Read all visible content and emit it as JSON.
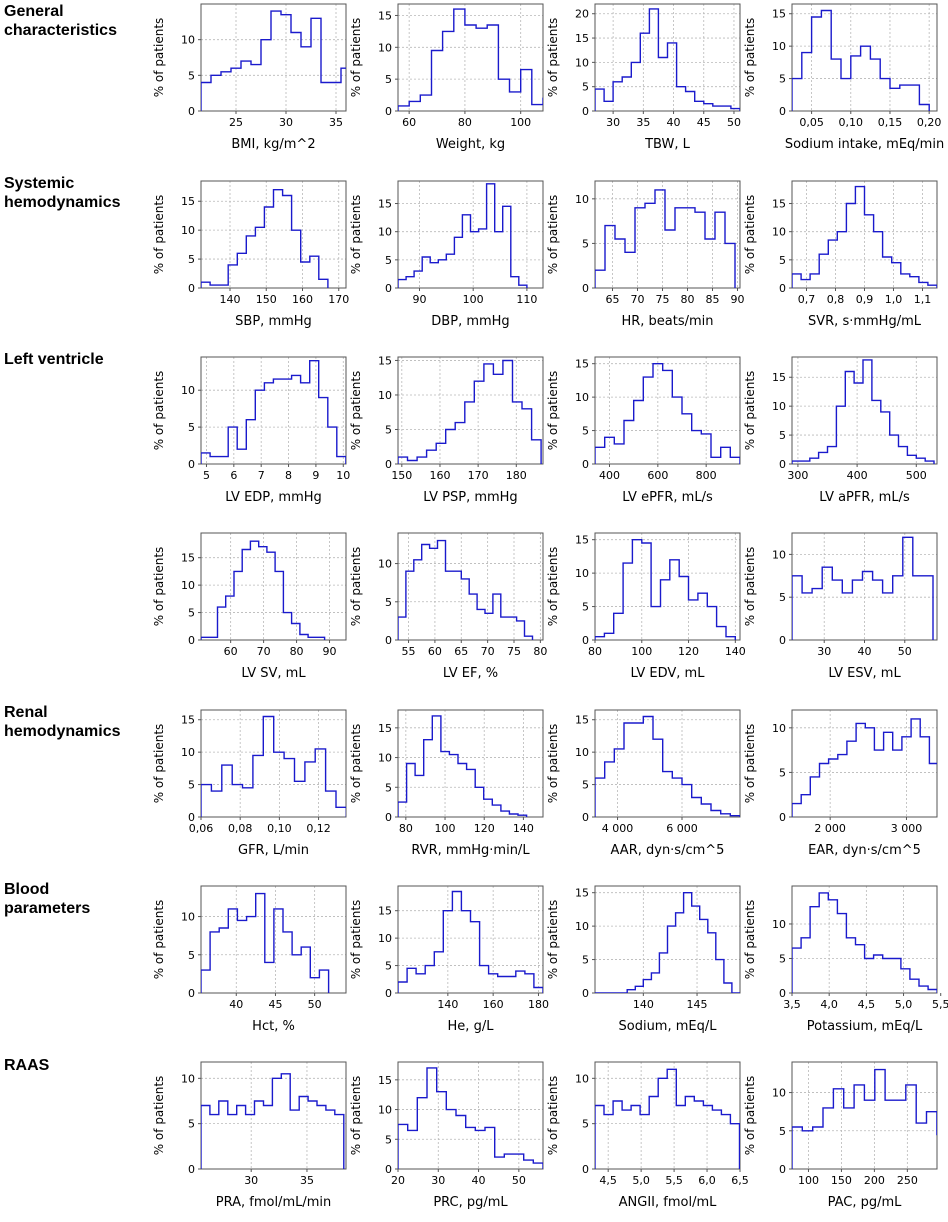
{
  "sections": [
    {
      "label": "General\ncharacteristics",
      "row": 0
    },
    {
      "label": "Systemic\nhemodynamics",
      "row": 1
    },
    {
      "label": "Left ventricle",
      "row": 2
    },
    {
      "label": "Renal\nhemodynamics",
      "row": 4
    },
    {
      "label": "Blood\nparameters",
      "row": 5
    },
    {
      "label": "RAAS",
      "row": 6
    }
  ],
  "y_axis_label": "% of patients",
  "chart_data": [
    {
      "type": "histogram",
      "row": 0,
      "col": 0,
      "xlabel": "BMI, kg/m^2",
      "xlim": [
        21.5,
        36
      ],
      "ylim": [
        0,
        15
      ],
      "xticks": [
        "25",
        "30",
        "35"
      ],
      "xtick_values": [
        25,
        30,
        35
      ],
      "yticks": [
        0,
        5,
        10
      ],
      "bin_start": 21.5,
      "bin_width": 1,
      "values": [
        4,
        5,
        5.5,
        6,
        7,
        6.5,
        10,
        14,
        13.5,
        11,
        9,
        13,
        4,
        4,
        6,
        1.5
      ]
    },
    {
      "type": "histogram",
      "row": 0,
      "col": 1,
      "xlabel": "Weight, kg",
      "xlim": [
        56,
        108
      ],
      "ylim": [
        0,
        16.8
      ],
      "xticks": [
        "60",
        "80",
        "100"
      ],
      "xtick_values": [
        60,
        80,
        100
      ],
      "yticks": [
        0,
        5,
        10,
        15
      ],
      "bin_start": 56,
      "bin_width": 4,
      "values": [
        0.8,
        1.5,
        2.5,
        9.5,
        12.5,
        16,
        13.5,
        13,
        13.5,
        5,
        3,
        6.5,
        1,
        2
      ]
    },
    {
      "type": "histogram",
      "row": 0,
      "col": 2,
      "xlabel": "TBW, L",
      "xlim": [
        27,
        51
      ],
      "ylim": [
        0,
        22
      ],
      "xticks": [
        "30",
        "35",
        "40",
        "45",
        "50"
      ],
      "xtick_values": [
        30,
        35,
        40,
        45,
        50
      ],
      "yticks": [
        0,
        5,
        10,
        15,
        20
      ],
      "bin_start": 27,
      "bin_width": 1.5,
      "values": [
        4.5,
        2,
        6,
        7,
        10,
        16,
        21,
        11,
        14,
        5,
        4,
        2,
        1.5,
        1,
        1,
        0.5
      ]
    },
    {
      "type": "histogram",
      "row": 0,
      "col": 3,
      "xlabel": "Sodium intake, mEq/min",
      "xlim": [
        0.025,
        0.21
      ],
      "ylim": [
        0,
        16.5
      ],
      "xticks": [
        "0,05",
        "0,10",
        "0,15",
        "0,20"
      ],
      "xtick_values": [
        0.05,
        0.1,
        0.15,
        0.2
      ],
      "yticks": [
        0,
        5,
        10,
        15
      ],
      "bin_start": 0.025,
      "bin_width": 0.0125,
      "values": [
        5,
        9,
        14.5,
        15.5,
        8,
        5,
        8.5,
        10,
        8,
        5,
        3.5,
        4,
        4,
        1
      ]
    },
    {
      "type": "histogram",
      "row": 1,
      "col": 0,
      "xlabel": "SBP, mmHg",
      "xlim": [
        132,
        172
      ],
      "ylim": [
        0,
        18.5
      ],
      "xticks": [
        "140",
        "150",
        "160",
        "170"
      ],
      "xtick_values": [
        140,
        150,
        160,
        170
      ],
      "yticks": [
        0,
        5,
        10,
        15
      ],
      "bin_start": 132,
      "bin_width": 2.5,
      "values": [
        1,
        0.5,
        0.5,
        4,
        6,
        9,
        10.5,
        14,
        17,
        16,
        10,
        4.5,
        5.5,
        1.5
      ]
    },
    {
      "type": "histogram",
      "row": 1,
      "col": 1,
      "xlabel": "DBP, mmHg",
      "xlim": [
        86,
        113
      ],
      "ylim": [
        0,
        19
      ],
      "xticks": [
        "90",
        "100",
        "110"
      ],
      "xtick_values": [
        90,
        100,
        110
      ],
      "yticks": [
        0,
        5,
        10,
        15
      ],
      "bin_start": 86,
      "bin_width": 1.5,
      "values": [
        1.5,
        2,
        3,
        5.5,
        4.5,
        5,
        6,
        9,
        13,
        10,
        10.5,
        18.5,
        10,
        14.5,
        2,
        0.5
      ]
    },
    {
      "type": "histogram",
      "row": 1,
      "col": 2,
      "xlabel": "HR, beats/min",
      "xlim": [
        61.5,
        90.5
      ],
      "ylim": [
        0,
        12
      ],
      "xticks": [
        "65",
        "70",
        "75",
        "80",
        "85",
        "90"
      ],
      "xtick_values": [
        65,
        70,
        75,
        80,
        85,
        90
      ],
      "yticks": [
        0,
        5,
        10
      ],
      "bin_start": 61.5,
      "bin_width": 2,
      "values": [
        2,
        7,
        5.5,
        4,
        9,
        9.5,
        11,
        6.5,
        9,
        9,
        8.5,
        5.5,
        8.5,
        5
      ]
    },
    {
      "type": "histogram",
      "row": 1,
      "col": 3,
      "xlabel": "SVR, s·mmHg/mL",
      "xlim": [
        0.65,
        1.15
      ],
      "ylim": [
        0,
        19
      ],
      "xticks": [
        "0,7",
        "0,8",
        "0,9",
        "1,0",
        "1,1"
      ],
      "xtick_values": [
        0.7,
        0.8,
        0.9,
        1.0,
        1.1
      ],
      "yticks": [
        0,
        5,
        10,
        15
      ],
      "bin_start": 0.65,
      "bin_width": 0.03125,
      "values": [
        2.5,
        1.5,
        2.5,
        6,
        8.5,
        10,
        15,
        18,
        13,
        10,
        5.5,
        4.5,
        2.5,
        2,
        1,
        0.5
      ]
    },
    {
      "type": "histogram",
      "row": 2,
      "col": 0,
      "xlabel": "LV EDP, mmHg",
      "xlim": [
        4.8,
        10.1
      ],
      "ylim": [
        0,
        14.5
      ],
      "xticks": [
        "5",
        "6",
        "7",
        "8",
        "9",
        "10"
      ],
      "xtick_values": [
        5,
        6,
        7,
        8,
        9,
        10
      ],
      "yticks": [
        0,
        5,
        10
      ],
      "bin_start": 4.8,
      "bin_width": 0.331,
      "values": [
        1.5,
        1,
        1,
        5,
        2,
        6,
        10,
        11,
        11.5,
        11.5,
        12,
        11,
        14,
        9,
        5,
        1
      ]
    },
    {
      "type": "histogram",
      "row": 2,
      "col": 1,
      "xlabel": "LV PSP, mmHg",
      "xlim": [
        149,
        187
      ],
      "ylim": [
        0,
        15.5
      ],
      "xticks": [
        "150",
        "160",
        "170",
        "180"
      ],
      "xtick_values": [
        150,
        160,
        170,
        180
      ],
      "yticks": [
        0,
        5,
        10,
        15
      ],
      "bin_start": 149,
      "bin_width": 2.5,
      "values": [
        1,
        0.5,
        1,
        2,
        3,
        5,
        6,
        9,
        12,
        14.5,
        13,
        15,
        9,
        8,
        3.5
      ]
    },
    {
      "type": "histogram",
      "row": 2,
      "col": 2,
      "xlabel": "LV ePFR, mL/s",
      "xlim": [
        340,
        940
      ],
      "ylim": [
        0,
        16
      ],
      "xticks": [
        "400",
        "600",
        "800"
      ],
      "xtick_values": [
        400,
        600,
        800
      ],
      "yticks": [
        0,
        5,
        10,
        15
      ],
      "bin_start": 340,
      "bin_width": 40,
      "values": [
        2.5,
        4,
        3,
        6.5,
        9.5,
        13,
        15,
        14,
        10,
        7.5,
        5,
        4.5,
        1,
        2.5,
        1
      ]
    },
    {
      "type": "histogram",
      "row": 2,
      "col": 3,
      "xlabel": "LV aPFR, mL/s",
      "xlim": [
        290,
        535
      ],
      "ylim": [
        0,
        18.5
      ],
      "xticks": [
        "300",
        "400",
        "500"
      ],
      "xtick_values": [
        300,
        400,
        500
      ],
      "yticks": [
        0,
        5,
        10,
        15
      ],
      "bin_start": 290,
      "bin_width": 15,
      "values": [
        0.5,
        0.5,
        1,
        2,
        3,
        10,
        16,
        14,
        18,
        11,
        9,
        5,
        3,
        1.5,
        1,
        0.5
      ]
    },
    {
      "type": "histogram",
      "row": 3,
      "col": 0,
      "xlabel": "LV SV, mL",
      "xlim": [
        51,
        95
      ],
      "ylim": [
        0,
        19.5
      ],
      "xticks": [
        "60",
        "70",
        "80",
        "90"
      ],
      "xtick_values": [
        60,
        70,
        80,
        90
      ],
      "yticks": [
        0,
        5,
        10,
        15
      ],
      "bin_start": 51,
      "bin_width": 2.5,
      "values": [
        0.5,
        0.5,
        6,
        8,
        12.5,
        16.5,
        18,
        17,
        16,
        12.5,
        5,
        3,
        1,
        0.5,
        0.5
      ]
    },
    {
      "type": "histogram",
      "row": 3,
      "col": 1,
      "xlabel": "LV EF, %",
      "xlim": [
        53,
        80.5
      ],
      "ylim": [
        0,
        14
      ],
      "xticks": [
        "55",
        "60",
        "65",
        "70",
        "75",
        "80"
      ],
      "xtick_values": [
        55,
        60,
        65,
        70,
        75,
        80
      ],
      "yticks": [
        0,
        5,
        10
      ],
      "bin_start": 53,
      "bin_width": 1.5,
      "values": [
        3,
        9,
        10.5,
        12.5,
        12,
        13,
        9,
        9,
        8,
        6,
        4,
        3.5,
        6,
        3,
        3,
        2.5,
        0.5
      ]
    },
    {
      "type": "histogram",
      "row": 3,
      "col": 2,
      "xlabel": "LV EDV, mL",
      "xlim": [
        80,
        142
      ],
      "ylim": [
        0,
        16
      ],
      "xticks": [
        "80",
        "100",
        "120",
        "140"
      ],
      "xtick_values": [
        80,
        100,
        120,
        140
      ],
      "yticks": [
        0,
        5,
        10,
        15
      ],
      "bin_start": 80,
      "bin_width": 4,
      "values": [
        0.5,
        1,
        4,
        11.5,
        15,
        14.5,
        5,
        9,
        12,
        9.5,
        6,
        7,
        5,
        2,
        0.5
      ]
    },
    {
      "type": "histogram",
      "row": 3,
      "col": 3,
      "xlabel": "LV ESV, mL",
      "xlim": [
        22,
        58
      ],
      "ylim": [
        0,
        12.5
      ],
      "xticks": [
        "30",
        "40",
        "50"
      ],
      "xtick_values": [
        30,
        40,
        50
      ],
      "yticks": [
        0,
        5,
        10
      ],
      "bin_start": 22,
      "bin_width": 2.5,
      "values": [
        7.5,
        5.5,
        6,
        8.5,
        7,
        5.5,
        7,
        8,
        7,
        5.5,
        7.5,
        12,
        7.5,
        7.5
      ]
    },
    {
      "type": "histogram",
      "row": 4,
      "col": 0,
      "xlabel": "GFR, L/min",
      "xlim": [
        0.06,
        0.134
      ],
      "ylim": [
        0,
        16.5
      ],
      "xticks": [
        "0,06",
        "0,08",
        "0,10",
        "0,12"
      ],
      "xtick_values": [
        0.06,
        0.08,
        0.1,
        0.12
      ],
      "yticks": [
        0,
        5,
        10,
        15
      ],
      "bin_start": 0.06,
      "bin_width": 0.0053,
      "values": [
        5,
        4,
        8,
        5,
        4.5,
        9.5,
        15.5,
        10,
        9,
        5.5,
        8.5,
        10.5,
        4,
        1.5
      ]
    },
    {
      "type": "histogram",
      "row": 4,
      "col": 1,
      "xlabel": "RVR, mmHg·min/L",
      "xlim": [
        76,
        150
      ],
      "ylim": [
        0,
        18
      ],
      "xticks": [
        "80",
        "100",
        "120",
        "140"
      ],
      "xtick_values": [
        80,
        100,
        120,
        140
      ],
      "yticks": [
        0,
        5,
        10,
        15
      ],
      "bin_start": 76,
      "bin_width": 4.375,
      "values": [
        2.5,
        9,
        7,
        13,
        17,
        11,
        10.5,
        9,
        8,
        5,
        3,
        2,
        1,
        0.5,
        0.3
      ]
    },
    {
      "type": "histogram",
      "row": 4,
      "col": 2,
      "xlabel": "AAR, dyn·s/cm^5",
      "xlim": [
        3300,
        7800
      ],
      "ylim": [
        0,
        16.5
      ],
      "xticks": [
        "4 000",
        "6 000"
      ],
      "xtick_values": [
        4000,
        6000
      ],
      "yticks": [
        0,
        5,
        10,
        15
      ],
      "bin_start": 3300,
      "bin_width": 300,
      "values": [
        6,
        8.5,
        10.5,
        14.5,
        14.5,
        15.5,
        12,
        7,
        6,
        5,
        3,
        2,
        1,
        0.5,
        0.2
      ]
    },
    {
      "type": "histogram",
      "row": 4,
      "col": 3,
      "xlabel": "EAR, dyn·s/cm^5",
      "xlim": [
        1500,
        3400
      ],
      "ylim": [
        0,
        12
      ],
      "xticks": [
        "2 000",
        "3 000"
      ],
      "xtick_values": [
        2000,
        3000
      ],
      "yticks": [
        0,
        5,
        10
      ],
      "bin_start": 1500,
      "bin_width": 120,
      "values": [
        1.5,
        2.5,
        4.5,
        6,
        6.5,
        7,
        8.5,
        10.5,
        10,
        7.5,
        9.5,
        7.5,
        9,
        11,
        9,
        6
      ]
    },
    {
      "type": "histogram",
      "row": 5,
      "col": 0,
      "xlabel": "Hct, %",
      "xlim": [
        35.5,
        54
      ],
      "ylim": [
        0,
        14
      ],
      "xticks": [
        "40",
        "45",
        "50"
      ],
      "xtick_values": [
        40,
        45,
        50
      ],
      "yticks": [
        0,
        5,
        10
      ],
      "bin_start": 35.5,
      "bin_width": 1.1625,
      "values": [
        3,
        8,
        8.5,
        11,
        9.5,
        10,
        13,
        4,
        11,
        8,
        5,
        6,
        2,
        3
      ]
    },
    {
      "type": "histogram",
      "row": 5,
      "col": 1,
      "xlabel": "He, g/L",
      "xlim": [
        118,
        182
      ],
      "ylim": [
        0,
        19.5
      ],
      "xticks": [
        "140",
        "160",
        "180"
      ],
      "xtick_values": [
        140,
        160,
        180
      ],
      "yticks": [
        0,
        5,
        10,
        15
      ],
      "bin_start": 118,
      "bin_width": 4,
      "values": [
        2,
        4.5,
        3.5,
        5,
        7.5,
        15,
        18.5,
        15,
        13,
        5,
        3.5,
        3,
        3,
        4,
        3.5,
        1
      ]
    },
    {
      "type": "histogram",
      "row": 5,
      "col": 2,
      "xlabel": "Sodium, mEq/L",
      "xlim": [
        135.5,
        149
      ],
      "ylim": [
        0,
        16
      ],
      "xticks": [
        "140",
        "145"
      ],
      "xtick_values": [
        140,
        145
      ],
      "yticks": [
        0,
        5,
        10,
        15
      ],
      "bin_start": 135.5,
      "bin_width": 0.75,
      "values": [
        0,
        0,
        0,
        0,
        0.5,
        1,
        2,
        3,
        6,
        10,
        12,
        15,
        13,
        11,
        9,
        5,
        1.5,
        0
      ]
    },
    {
      "type": "histogram",
      "row": 5,
      "col": 3,
      "xlabel": "Potassium, mEq/L",
      "xlim": [
        3.5,
        5.45
      ],
      "ylim": [
        0,
        15.5
      ],
      "xticks": [
        "3,5",
        "4,0",
        "4,5",
        "5,0",
        "5,5"
      ],
      "xtick_values": [
        3.5,
        4.0,
        4.5,
        5.0,
        5.5
      ],
      "yticks": [
        0,
        5,
        10
      ],
      "bin_start": 3.5,
      "bin_width": 0.122,
      "values": [
        6.5,
        8,
        12.5,
        14.5,
        13.5,
        11.5,
        8,
        7,
        5,
        5.5,
        5,
        5,
        3.5,
        2,
        1,
        0.5
      ]
    },
    {
      "type": "histogram",
      "row": 6,
      "col": 0,
      "xlabel": "PRA, fmol/mL/min",
      "xlim": [
        25.5,
        38.5
      ],
      "ylim": [
        0,
        11.8
      ],
      "xticks": [
        "30",
        "35"
      ],
      "xtick_values": [
        30,
        35
      ],
      "yticks": [
        0,
        5,
        10
      ],
      "bin_start": 25.5,
      "bin_width": 0.8,
      "values": [
        7,
        6,
        7.5,
        6,
        7,
        6,
        7.5,
        7,
        10,
        10.5,
        6.5,
        8,
        7.5,
        7,
        6.5,
        6
      ]
    },
    {
      "type": "histogram",
      "row": 6,
      "col": 1,
      "xlabel": "PRC, pg/mL",
      "xlim": [
        20,
        56
      ],
      "ylim": [
        0,
        18
      ],
      "xticks": [
        "20",
        "30",
        "40",
        "50"
      ],
      "xtick_values": [
        20,
        30,
        40,
        50
      ],
      "yticks": [
        0,
        5,
        10,
        15
      ],
      "bin_start": 20,
      "bin_width": 2.4,
      "values": [
        7.5,
        6.5,
        12,
        17,
        13,
        10,
        9,
        7,
        6.5,
        7,
        2,
        2.5,
        2.5,
        1.5,
        1
      ]
    },
    {
      "type": "histogram",
      "row": 6,
      "col": 2,
      "xlabel": "ANGII, fmol/mL",
      "xlim": [
        4.3,
        6.5
      ],
      "ylim": [
        0,
        11.8
      ],
      "xticks": [
        "4,5",
        "5,0",
        "5,5",
        "6,0",
        "6,5"
      ],
      "xtick_values": [
        4.5,
        5.0,
        5.5,
        6.0,
        6.5
      ],
      "yticks": [
        0,
        5,
        10
      ],
      "bin_start": 4.3,
      "bin_width": 0.137,
      "values": [
        7,
        6,
        7.5,
        6.5,
        7,
        6,
        8,
        10,
        11,
        7,
        8,
        7.5,
        7,
        6.5,
        6,
        5
      ]
    },
    {
      "type": "histogram",
      "row": 6,
      "col": 3,
      "xlabel": "PAC, pg/mL",
      "xlim": [
        75,
        295
      ],
      "ylim": [
        0,
        14
      ],
      "xticks": [
        "100",
        "150",
        "200",
        "250"
      ],
      "xtick_values": [
        100,
        150,
        200,
        250
      ],
      "yticks": [
        0,
        5,
        10
      ],
      "bin_start": 75,
      "bin_width": 15.7,
      "values": [
        5.5,
        5,
        5.5,
        8,
        10.5,
        8,
        11,
        9,
        13,
        9,
        9,
        11,
        6,
        7.5,
        4.5
      ]
    }
  ]
}
